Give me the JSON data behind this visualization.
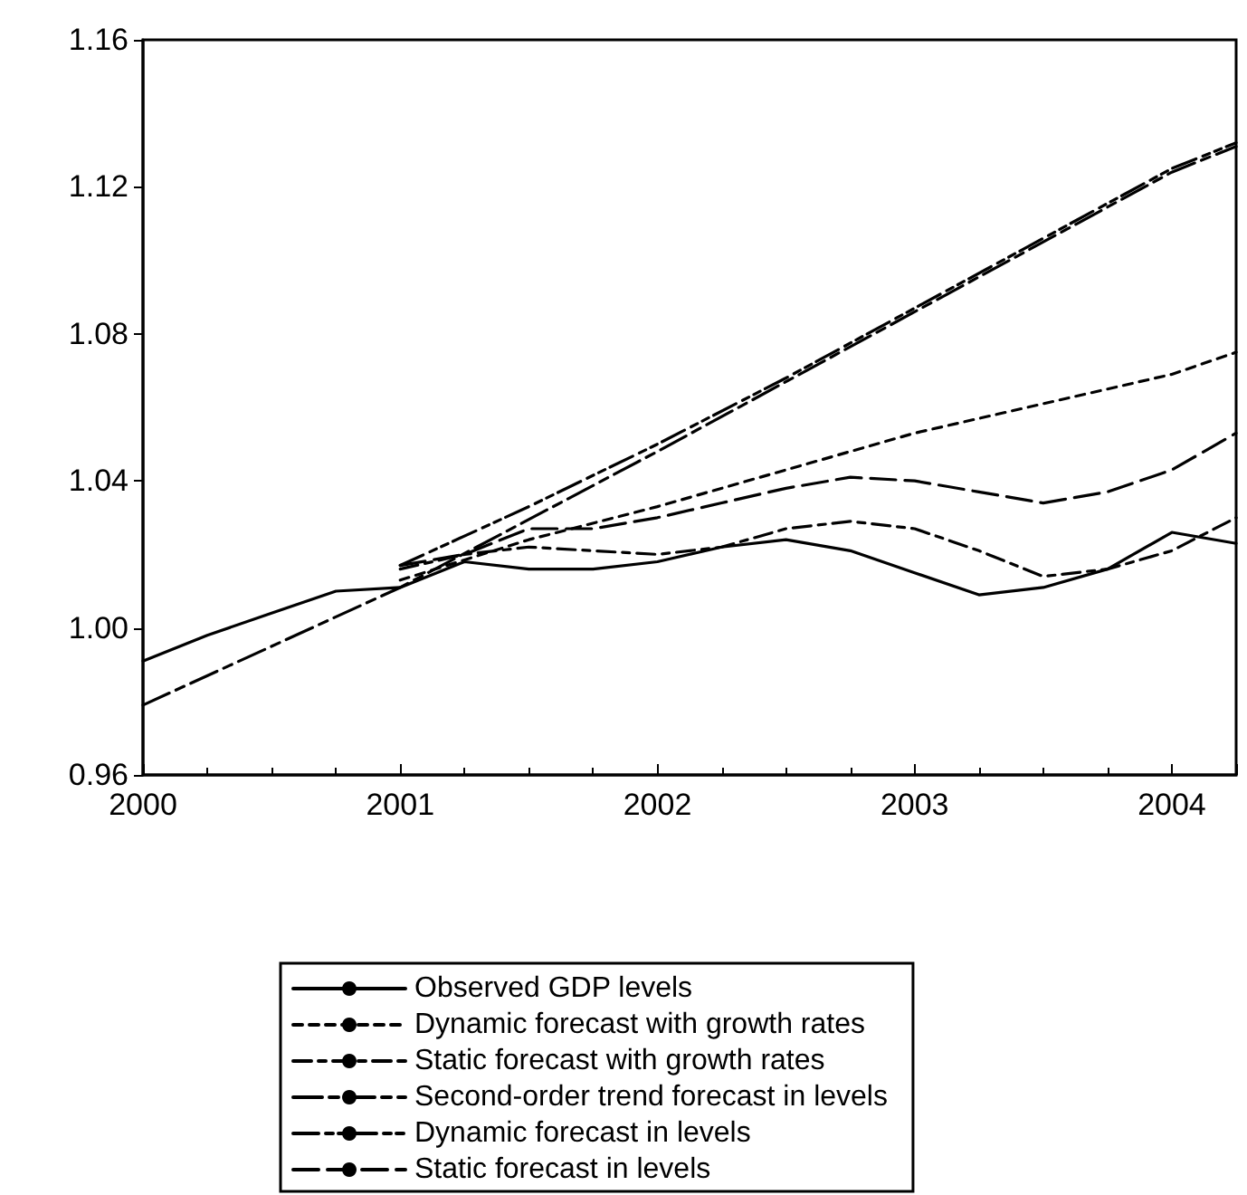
{
  "chart_data": {
    "type": "line",
    "xlim": [
      2000,
      2004.25
    ],
    "xticks": [
      2000,
      2001,
      2002,
      2003,
      2004
    ],
    "ylim": [
      0.96,
      1.16
    ],
    "yticks": [
      {
        "value": 0.96,
        "label": "0.96"
      },
      {
        "value": 1,
        "label": "1.00"
      },
      {
        "value": 1.04,
        "label": "1.04"
      },
      {
        "value": 1.08,
        "label": "1.08"
      },
      {
        "value": 1.12,
        "label": "1.12"
      },
      {
        "value": 1.16,
        "label": "1.16"
      }
    ],
    "grid": false,
    "legend": "bottom",
    "marker": "none",
    "series": [
      {
        "name": "Observed GDP levels",
        "color": "#000000",
        "line_style": "solid",
        "x": [
          2000,
          2000.25,
          2000.5,
          2000.75,
          2001,
          2001.25,
          2001.5,
          2001.75,
          2002,
          2002.25,
          2002.5,
          2002.75,
          2003,
          2003.25,
          2003.5,
          2003.75,
          2004,
          2004.25
        ],
        "values": [
          0.991,
          0.998,
          1.004,
          1.01,
          1.011,
          1.018,
          1.016,
          1.016,
          1.018,
          1.022,
          1.024,
          1.021,
          1.015,
          1.009,
          1.011,
          1.016,
          1.026,
          1.023
        ]
      },
      {
        "name": "Dynamic forecast with growth rates",
        "color": "#000000",
        "line_style": "dashed",
        "x": [
          2001,
          2001.5,
          2002,
          2002.5,
          2003,
          2003.5,
          2004,
          2004.25
        ],
        "values": [
          1.013,
          1.024,
          1.033,
          1.043,
          1.053,
          1.061,
          1.069,
          1.075
        ]
      },
      {
        "name": "Static forecast with growth rates",
        "color": "#000000",
        "line_style": "dashdot",
        "x": [
          2001,
          2001.25,
          2001.5,
          2001.75,
          2002,
          2002.25,
          2002.5,
          2002.75,
          2003,
          2003.25,
          2003.5,
          2003.75,
          2004,
          2004.25
        ],
        "values": [
          1.016,
          1.02,
          1.022,
          1.021,
          1.02,
          1.022,
          1.027,
          1.029,
          1.027,
          1.021,
          1.014,
          1.016,
          1.021,
          1.03
        ]
      },
      {
        "name": "Second-order trend forecast in levels",
        "color": "#000000",
        "line_style": "longdashdot",
        "x": [
          2000,
          2001,
          2002,
          2003,
          2004,
          2004.25
        ],
        "values": [
          0.979,
          1.011,
          1.048,
          1.086,
          1.124,
          1.131
        ]
      },
      {
        "name": "Dynamic forecast in levels",
        "color": "#000000",
        "line_style": "dashdotdot",
        "x": [
          2001,
          2001.5,
          2002,
          2002.5,
          2003,
          2003.5,
          2004,
          2004.25
        ],
        "values": [
          1.017,
          1.033,
          1.05,
          1.068,
          1.087,
          1.106,
          1.125,
          1.132
        ]
      },
      {
        "name": "Static forecast in levels",
        "color": "#000000",
        "line_style": "longdash",
        "x": [
          2001,
          2001.25,
          2001.5,
          2001.75,
          2002,
          2002.25,
          2002.5,
          2002.75,
          2003,
          2003.25,
          2003.5,
          2003.75,
          2004,
          2004.25
        ],
        "values": [
          1.017,
          1.02,
          1.027,
          1.027,
          1.03,
          1.034,
          1.038,
          1.041,
          1.04,
          1.037,
          1.034,
          1.037,
          1.043,
          1.053
        ]
      }
    ]
  }
}
